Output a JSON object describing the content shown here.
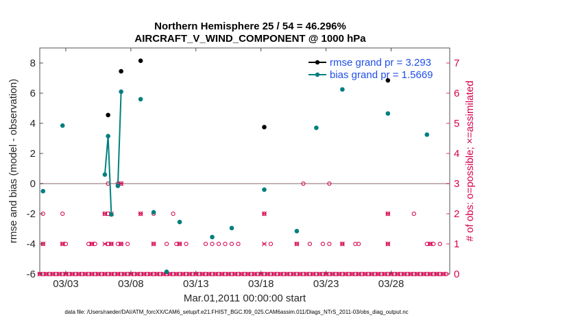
{
  "chart_data": {
    "type": "line",
    "title_line1": "Northern Hemisphere 25 / 54 = 46.296%",
    "title_line2": "AIRCRAFT_V_WIND_COMPONENT @ 1000 hPa",
    "xlabel": "Mar.01,2011 00:00:00 start",
    "ylabel_left": "rmse and bias (model - observation)",
    "ylabel_right": "# of obs: o=possible; ×=assimilated",
    "footer": "data file: /Users/raeder/DAI/ATM_forcXX/CAM6_setup/f.e21.FHIST_BGC.f09_025.CAM6assim.011/Diags_NTrS_2011-03/obs_diag_output.nc",
    "xlim": [
      0,
      31.5
    ],
    "ylim_left": [
      -6,
      9
    ],
    "ylim_right": [
      0,
      7.5
    ],
    "x_ticks": [
      {
        "x": 2,
        "label": "03/03"
      },
      {
        "x": 7,
        "label": "03/08"
      },
      {
        "x": 12,
        "label": "03/13"
      },
      {
        "x": 17,
        "label": "03/18"
      },
      {
        "x": 22,
        "label": "03/23"
      },
      {
        "x": 27,
        "label": "03/28"
      }
    ],
    "y_ticks_left": [
      -6,
      -4,
      -2,
      0,
      2,
      4,
      6,
      8
    ],
    "y_ticks_right": [
      0,
      1,
      2,
      3,
      4,
      5,
      6,
      7
    ],
    "colors": {
      "rmse": "#000000",
      "bias": "#007f7f",
      "obs": "#d6004f",
      "zero_line": "#b09898",
      "legend_text": "#1f4ee8"
    },
    "legend": {
      "placement": "top-right",
      "entries": [
        "rmse grand pr = 3.293",
        "bias grand pr = 1.5669"
      ]
    },
    "series": [
      {
        "name": "rmse grand pr = 3.293",
        "segments": [
          [
            [
              5.25,
              4.55
            ]
          ],
          [
            [
              6.25,
              7.45
            ]
          ],
          [
            [
              7.75,
              8.15
            ]
          ],
          [
            [
              17.25,
              3.75
            ]
          ],
          [
            [
              26.75,
              6.85
            ]
          ]
        ]
      },
      {
        "name": "bias grand pr = 1.5669",
        "segments": [
          [
            [
              0.25,
              -0.5
            ]
          ],
          [
            [
              1.75,
              3.85
            ]
          ],
          [
            [
              5.0,
              0.6
            ],
            [
              5.25,
              3.15
            ],
            [
              5.5,
              -2.05
            ]
          ],
          [
            [
              6.0,
              -0.15
            ],
            [
              6.25,
              6.1
            ]
          ],
          [
            [
              7.75,
              5.6
            ]
          ],
          [
            [
              8.75,
              -1.9
            ]
          ],
          [
            [
              9.75,
              -5.85
            ]
          ],
          [
            [
              10.75,
              -2.55
            ]
          ],
          [
            [
              13.25,
              -3.55
            ]
          ],
          [
            [
              14.75,
              -2.95
            ]
          ],
          [
            [
              17.25,
              -0.4
            ]
          ],
          [
            [
              19.75,
              -3.15
            ]
          ],
          [
            [
              21.25,
              3.7
            ]
          ],
          [
            [
              23.25,
              6.25
            ]
          ],
          [
            [
              26.75,
              4.65
            ]
          ],
          [
            [
              29.75,
              3.25
            ]
          ]
        ]
      }
    ],
    "obs_possible": [
      [
        0,
        0
      ],
      [
        0.25,
        0
      ],
      [
        0.5,
        0
      ],
      [
        0.75,
        0
      ],
      [
        1,
        0
      ],
      [
        1.25,
        0
      ],
      [
        1.5,
        0
      ],
      [
        1.75,
        0
      ],
      [
        2,
        0
      ],
      [
        2.25,
        0
      ],
      [
        2.5,
        0
      ],
      [
        2.75,
        0
      ],
      [
        3,
        0
      ],
      [
        3.25,
        0
      ],
      [
        3.5,
        0
      ],
      [
        3.75,
        0
      ],
      [
        4,
        0
      ],
      [
        4.25,
        0
      ],
      [
        4.5,
        0
      ],
      [
        4.75,
        0
      ],
      [
        5,
        0
      ],
      [
        5.25,
        0
      ],
      [
        5.5,
        0
      ],
      [
        5.75,
        0
      ],
      [
        6,
        0
      ],
      [
        6.25,
        0
      ],
      [
        6.5,
        0
      ],
      [
        6.75,
        0
      ],
      [
        7,
        0
      ],
      [
        7.25,
        0
      ],
      [
        7.5,
        0
      ],
      [
        7.75,
        0
      ],
      [
        8,
        0
      ],
      [
        8.25,
        0
      ],
      [
        8.5,
        0
      ],
      [
        8.75,
        0
      ],
      [
        9,
        0
      ],
      [
        9.25,
        0
      ],
      [
        9.5,
        0
      ],
      [
        9.75,
        0
      ],
      [
        10,
        0
      ],
      [
        10.25,
        0
      ],
      [
        10.5,
        0
      ],
      [
        10.75,
        0
      ],
      [
        11,
        0
      ],
      [
        11.25,
        0
      ],
      [
        11.5,
        0
      ],
      [
        11.75,
        0
      ],
      [
        12,
        0
      ],
      [
        12.25,
        0
      ],
      [
        12.5,
        0
      ],
      [
        12.75,
        0
      ],
      [
        13,
        0
      ],
      [
        13.25,
        0
      ],
      [
        13.5,
        0
      ],
      [
        13.75,
        0
      ],
      [
        14,
        0
      ],
      [
        14.25,
        0
      ],
      [
        14.5,
        0
      ],
      [
        14.75,
        0
      ],
      [
        15,
        0
      ],
      [
        15.25,
        0
      ],
      [
        15.5,
        0
      ],
      [
        15.75,
        0
      ],
      [
        16,
        0
      ],
      [
        16.25,
        0
      ],
      [
        16.5,
        0
      ],
      [
        16.75,
        0
      ],
      [
        17,
        0
      ],
      [
        17.25,
        0
      ],
      [
        17.5,
        0
      ],
      [
        17.75,
        0
      ],
      [
        18,
        0
      ],
      [
        18.25,
        0
      ],
      [
        18.5,
        0
      ],
      [
        18.75,
        0
      ],
      [
        19,
        0
      ],
      [
        19.25,
        0
      ],
      [
        19.5,
        0
      ],
      [
        19.75,
        0
      ],
      [
        20,
        0
      ],
      [
        20.25,
        0
      ],
      [
        20.5,
        0
      ],
      [
        20.75,
        0
      ],
      [
        21,
        0
      ],
      [
        21.25,
        0
      ],
      [
        21.5,
        0
      ],
      [
        21.75,
        0
      ],
      [
        22,
        0
      ],
      [
        22.25,
        0
      ],
      [
        22.5,
        0
      ],
      [
        22.75,
        0
      ],
      [
        23,
        0
      ],
      [
        23.25,
        0
      ],
      [
        23.5,
        0
      ],
      [
        23.75,
        0
      ],
      [
        24,
        0
      ],
      [
        24.25,
        0
      ],
      [
        24.5,
        0
      ],
      [
        24.75,
        0
      ],
      [
        25,
        0
      ],
      [
        25.25,
        0
      ],
      [
        25.5,
        0
      ],
      [
        25.75,
        0
      ],
      [
        26,
        0
      ],
      [
        26.25,
        0
      ],
      [
        26.5,
        0
      ],
      [
        26.75,
        0
      ],
      [
        27,
        0
      ],
      [
        27.25,
        0
      ],
      [
        27.5,
        0
      ],
      [
        27.75,
        0
      ],
      [
        28,
        0
      ],
      [
        28.25,
        0
      ],
      [
        28.5,
        0
      ],
      [
        28.75,
        0
      ],
      [
        29,
        0
      ],
      [
        29.25,
        0
      ],
      [
        29.5,
        0
      ],
      [
        29.75,
        0
      ],
      [
        30,
        0
      ],
      [
        30.25,
        0
      ],
      [
        30.5,
        0
      ],
      [
        30.75,
        0
      ],
      [
        31,
        0
      ],
      [
        31.25,
        0
      ],
      [
        0.25,
        2
      ],
      [
        1.75,
        2
      ],
      [
        5.0,
        2
      ],
      [
        5.25,
        2
      ],
      [
        7.75,
        2
      ],
      [
        8.75,
        2
      ],
      [
        10.25,
        2
      ],
      [
        17.25,
        2
      ],
      [
        26.75,
        2
      ],
      [
        28.75,
        2
      ],
      [
        0.25,
        1
      ],
      [
        1.75,
        1
      ],
      [
        2.0,
        1
      ],
      [
        3.75,
        1
      ],
      [
        4.0,
        1
      ],
      [
        4.25,
        1
      ],
      [
        5.25,
        1
      ],
      [
        5.5,
        1
      ],
      [
        6.0,
        1
      ],
      [
        6.25,
        1
      ],
      [
        6.75,
        1
      ],
      [
        8.75,
        1
      ],
      [
        9.75,
        1
      ],
      [
        10.5,
        1
      ],
      [
        10.75,
        1
      ],
      [
        11.25,
        1
      ],
      [
        12.75,
        1
      ],
      [
        13.25,
        1
      ],
      [
        13.75,
        1
      ],
      [
        14.25,
        1
      ],
      [
        14.75,
        1
      ],
      [
        15.25,
        1
      ],
      [
        17.75,
        1
      ],
      [
        19.75,
        1
      ],
      [
        20.75,
        1
      ],
      [
        21.75,
        1
      ],
      [
        22.25,
        1
      ],
      [
        23.25,
        1
      ],
      [
        24.25,
        1
      ],
      [
        24.5,
        1
      ],
      [
        26.75,
        1
      ],
      [
        29.75,
        1
      ],
      [
        30.0,
        1
      ],
      [
        30.25,
        1
      ],
      [
        30.75,
        1
      ],
      [
        5.25,
        3
      ],
      [
        6.0,
        3
      ],
      [
        6.25,
        3
      ],
      [
        20.25,
        3
      ],
      [
        22.25,
        3
      ]
    ],
    "obs_assimilated": [
      [
        0,
        0
      ],
      [
        0.5,
        0
      ],
      [
        1,
        0
      ],
      [
        1.5,
        0
      ],
      [
        2,
        0
      ],
      [
        2.5,
        0
      ],
      [
        3,
        0
      ],
      [
        3.5,
        0
      ],
      [
        4,
        0
      ],
      [
        4.5,
        0
      ],
      [
        5,
        0
      ],
      [
        5.5,
        0
      ],
      [
        6,
        0
      ],
      [
        6.5,
        0
      ],
      [
        7,
        0
      ],
      [
        7.5,
        0
      ],
      [
        8,
        0
      ],
      [
        8.5,
        0
      ],
      [
        9,
        0
      ],
      [
        9.5,
        0
      ],
      [
        10,
        0
      ],
      [
        10.5,
        0
      ],
      [
        11,
        0
      ],
      [
        11.5,
        0
      ],
      [
        12,
        0
      ],
      [
        12.5,
        0
      ],
      [
        13,
        0
      ],
      [
        13.5,
        0
      ],
      [
        14,
        0
      ],
      [
        14.5,
        0
      ],
      [
        15,
        0
      ],
      [
        15.5,
        0
      ],
      [
        16,
        0
      ],
      [
        16.5,
        0
      ],
      [
        17,
        0
      ],
      [
        17.5,
        0
      ],
      [
        18,
        0
      ],
      [
        18.5,
        0
      ],
      [
        19,
        0
      ],
      [
        19.5,
        0
      ],
      [
        20,
        0
      ],
      [
        20.5,
        0
      ],
      [
        21,
        0
      ],
      [
        21.5,
        0
      ],
      [
        22,
        0
      ],
      [
        22.5,
        0
      ],
      [
        23,
        0
      ],
      [
        23.5,
        0
      ],
      [
        24,
        0
      ],
      [
        24.5,
        0
      ],
      [
        25,
        0
      ],
      [
        25.5,
        0
      ],
      [
        26,
        0
      ],
      [
        26.5,
        0
      ],
      [
        27,
        0
      ],
      [
        27.5,
        0
      ],
      [
        28,
        0
      ],
      [
        28.5,
        0
      ],
      [
        29,
        0
      ],
      [
        29.5,
        0
      ],
      [
        30,
        0
      ],
      [
        30.5,
        0
      ],
      [
        31,
        0
      ],
      [
        0.25,
        1
      ],
      [
        1.75,
        1
      ],
      [
        4.0,
        1
      ],
      [
        5.0,
        1
      ],
      [
        5.5,
        1
      ],
      [
        6.25,
        1
      ],
      [
        8.75,
        1
      ],
      [
        10.75,
        1
      ],
      [
        17.25,
        1
      ],
      [
        19.75,
        1
      ],
      [
        23.25,
        1
      ],
      [
        26.75,
        1
      ],
      [
        30.0,
        1
      ],
      [
        5.0,
        2
      ],
      [
        5.5,
        2
      ],
      [
        7.75,
        2
      ],
      [
        17.25,
        2
      ],
      [
        26.75,
        2
      ],
      [
        6.25,
        3
      ]
    ]
  }
}
